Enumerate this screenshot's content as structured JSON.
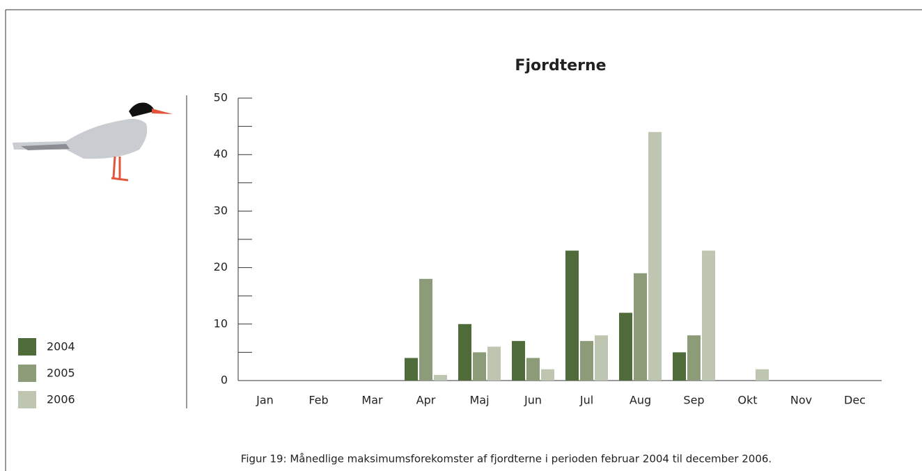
{
  "chart_data": {
    "type": "bar",
    "title": "Fjordterne",
    "caption": "Figur 19: Månedlige maksimumsforekomster af fjordterne i perioden februar 2004 til december 2006.",
    "categories": [
      "Jan",
      "Feb",
      "Mar",
      "Apr",
      "Maj",
      "Jun",
      "Jul",
      "Aug",
      "Sep",
      "Okt",
      "Nov",
      "Dec"
    ],
    "series": [
      {
        "name": "2004",
        "color": "#4f6b3a",
        "values": [
          0,
          0,
          0,
          4,
          10,
          7,
          23,
          12,
          5,
          0,
          0,
          0
        ]
      },
      {
        "name": "2005",
        "color": "#8c9c78",
        "values": [
          0,
          0,
          0,
          18,
          5,
          4,
          7,
          19,
          8,
          0,
          0,
          0
        ]
      },
      {
        "name": "2006",
        "color": "#bec6b2",
        "values": [
          0,
          0,
          0,
          1,
          6,
          2,
          8,
          44,
          23,
          2,
          0,
          0
        ]
      }
    ],
    "ylim": [
      0,
      50
    ],
    "yticks": [
      0,
      10,
      20,
      30,
      40,
      50
    ],
    "yticks_minor": [
      5,
      15,
      25,
      35,
      45
    ]
  }
}
